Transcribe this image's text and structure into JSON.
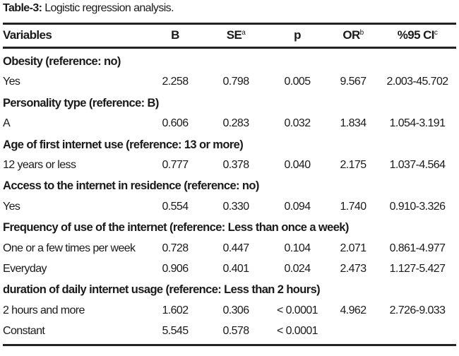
{
  "caption": {
    "label": "Table-3:",
    "text": "Logistic regression analysis."
  },
  "header": {
    "variables": "Variables",
    "b": "B",
    "se": "SE",
    "se_sup": "a",
    "p": "p",
    "or": "OR",
    "or_sup": "b",
    "ci": "%95 CI",
    "ci_sup": "c"
  },
  "rows": [
    {
      "type": "group",
      "label": "Obesity (reference: no)"
    },
    {
      "type": "data",
      "label": "Yes",
      "b": "2.258",
      "se": "0.798",
      "p": "0.005",
      "or": "9.567",
      "ci": "2.003-45.702"
    },
    {
      "type": "group",
      "label": "Personality type (reference: B)"
    },
    {
      "type": "data",
      "label": "A",
      "b": "0.606",
      "se": "0.283",
      "p": "0.032",
      "or": "1.834",
      "ci": "1.054-3.191"
    },
    {
      "type": "group",
      "label": "Age of first internet use (reference: 13 or more)"
    },
    {
      "type": "data",
      "label": "12 years or less",
      "b": "0.777",
      "se": "0.378",
      "p": "0.040",
      "or": "2.175",
      "ci": "1.037-4.564"
    },
    {
      "type": "group",
      "label": "Access to the internet in residence (reference: no)"
    },
    {
      "type": "data",
      "label": "Yes",
      "b": "0.554",
      "se": "0.330",
      "p": "0.094",
      "or": "1.740",
      "ci": "0.910-3.326"
    },
    {
      "type": "group",
      "label": "Frequency of use of the internet (reference: Less than once a week)"
    },
    {
      "type": "data",
      "label": "One or a few times per week",
      "b": "0.728",
      "se": "0.447",
      "p": "0.104",
      "or": "2.071",
      "ci": "0.861-4.977"
    },
    {
      "type": "data",
      "label": "Everyday",
      "b": "0.906",
      "se": "0.401",
      "p": "0.024",
      "or": "2.473",
      "ci": "1.127-5.427"
    },
    {
      "type": "group",
      "label": "duration of daily internet usage (reference: Less than 2 hours)"
    },
    {
      "type": "data",
      "label": "2 hours and more",
      "b": "1.602",
      "se": "0.306",
      "p": "< 0.0001",
      "or": "4.962",
      "ci": "2.726-9.033"
    },
    {
      "type": "data",
      "label": "Constant",
      "b": "5.545",
      "se": "0.578",
      "p": "< 0.0001",
      "or": "",
      "ci": ""
    }
  ]
}
